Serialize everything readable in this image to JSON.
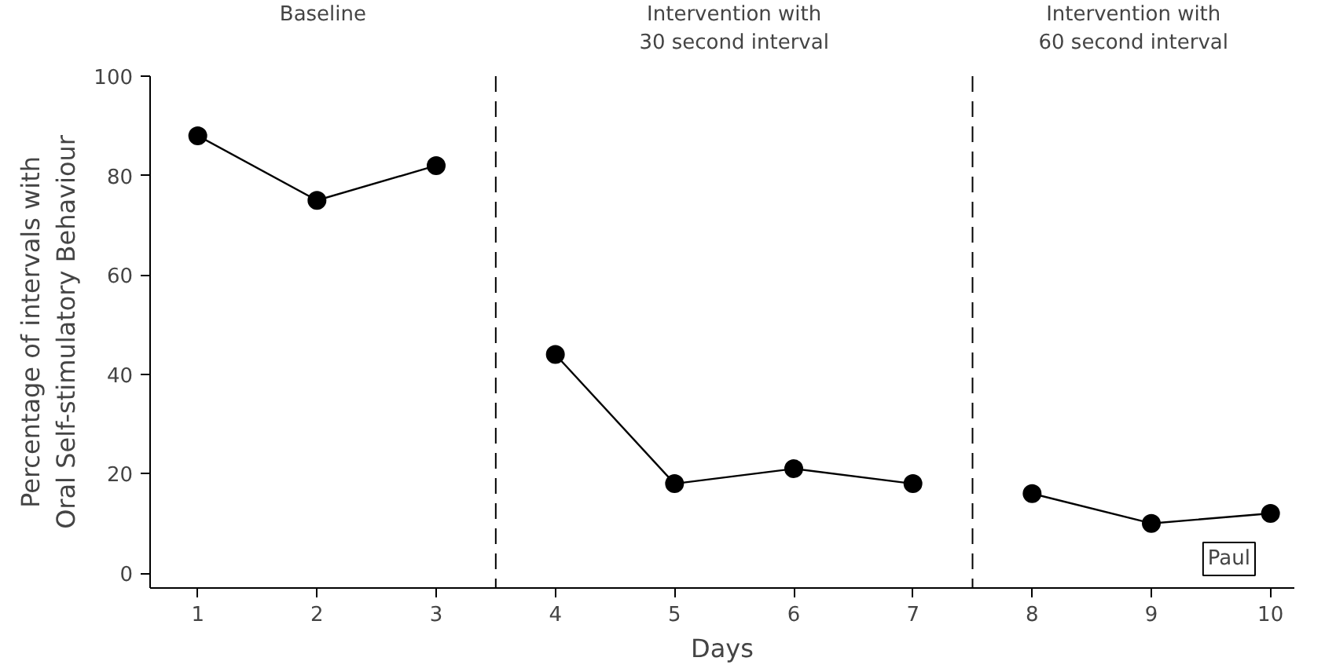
{
  "chart_data": {
    "type": "line",
    "xlabel": "Days",
    "ylabel": "Percentage of intervals with\nOral Self-stimulatory Behaviour",
    "series": [
      {
        "color": "#000000",
        "x": [
          1,
          2,
          3
        ],
        "values": [
          88,
          75,
          82
        ]
      },
      {
        "color": "#000000",
        "x": [
          4,
          5,
          6,
          7
        ],
        "values": [
          44,
          18,
          21,
          18
        ]
      },
      {
        "color": "#000000",
        "x": [
          8,
          9,
          10
        ],
        "values": [
          16,
          10,
          12
        ]
      }
    ],
    "marker": "circle",
    "line_style": "solid",
    "grid": false,
    "xlim": [
      0.6,
      10.2
    ],
    "xticks": [
      1,
      2,
      3,
      4,
      5,
      6,
      7,
      8,
      9,
      10
    ],
    "ylim": [
      -3,
      100
    ],
    "yticks": [
      0,
      20,
      40,
      60,
      80,
      100
    ],
    "ref_lines": [
      {
        "axis": "x",
        "value": 3.5,
        "line_style": "dashed",
        "color": "#000000"
      },
      {
        "axis": "x",
        "value": 7.5,
        "line_style": "dashed",
        "color": "#000000"
      }
    ],
    "annotations": [
      "Baseline",
      "Intervention with\n30 second interval",
      "Intervention with\n60 second interval",
      "Paul"
    ]
  }
}
